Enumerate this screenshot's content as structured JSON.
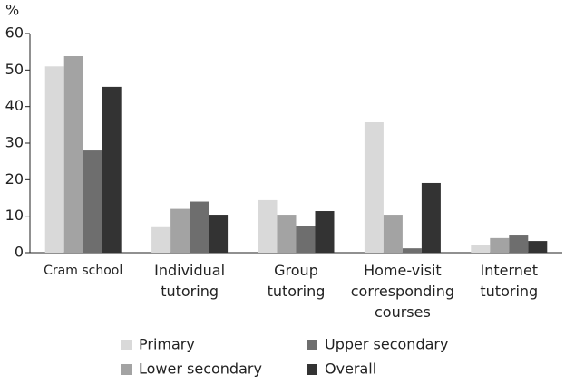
{
  "chart_data": {
    "type": "bar",
    "y_label": "%",
    "categories": [
      "Cram school",
      "Individual\ntutoring",
      "Group\ntutoring",
      "Home-visit\ncorresponding\ncourses",
      "Internet\ntutoring"
    ],
    "series": [
      {
        "name": "Primary",
        "color": "#d9d9d9",
        "values": [
          51,
          7,
          14.4,
          35.7,
          2.2
        ]
      },
      {
        "name": "Lower secondary",
        "color": "#a3a3a3",
        "values": [
          53.8,
          12,
          10.4,
          10.4,
          4
        ]
      },
      {
        "name": "Upper secondary",
        "color": "#6e6e6e",
        "values": [
          28,
          14,
          7.4,
          1.2,
          4.7
        ]
      },
      {
        "name": "Overall",
        "color": "#333333",
        "values": [
          45.4,
          10.4,
          11.4,
          19.1,
          3.2
        ]
      }
    ],
    "ylim": [
      0,
      60
    ],
    "yticks": [
      0,
      10,
      20,
      30,
      40,
      50,
      60
    ],
    "grid": false
  }
}
